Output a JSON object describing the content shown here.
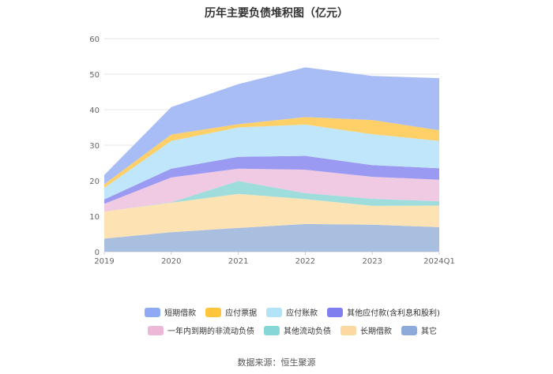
{
  "title": "历年主要负债堆积图（亿元）",
  "source": "数据来源：恒生聚源",
  "chart_data": {
    "type": "area",
    "stacked": true,
    "x": [
      "2019",
      "2020",
      "2021",
      "2022",
      "2023",
      "2024Q1"
    ],
    "ylim": [
      0,
      60
    ],
    "yticks": [
      0,
      10,
      20,
      30,
      40,
      50,
      60
    ],
    "grid": true,
    "legend_position": "bottom",
    "series": [
      {
        "name": "其它",
        "color": "#a9bfe0",
        "values": [
          3.7,
          5.5,
          6.7,
          7.8,
          7.6,
          6.9
        ]
      },
      {
        "name": "长期借款",
        "color": "#fde2b4",
        "values": [
          7.6,
          8.3,
          9.6,
          7.0,
          5.3,
          6.1
        ]
      },
      {
        "name": "其他流动负债",
        "color": "#9fdddd",
        "values": [
          0,
          0.1,
          3.6,
          1.7,
          2.0,
          1.2
        ]
      },
      {
        "name": "一年内到期的非流动负债",
        "color": "#f0c9e2",
        "values": [
          2.2,
          7.0,
          3.5,
          6.6,
          6.2,
          6.1
        ]
      },
      {
        "name": "其他应付款(含利息和股利)",
        "color": "#9b9af2",
        "values": [
          1.2,
          2.5,
          3.3,
          3.9,
          3.3,
          3.2
        ]
      },
      {
        "name": "应付账款",
        "color": "#bfe6fa",
        "values": [
          3.3,
          7.8,
          8.3,
          8.8,
          8.7,
          7.7
        ]
      },
      {
        "name": "应付票据",
        "color": "#ffd068",
        "values": [
          1.0,
          1.8,
          0.9,
          2.1,
          4.0,
          3.0
        ]
      },
      {
        "name": "短期借款",
        "color": "#a8bcf6",
        "values": [
          2.6,
          7.7,
          11.3,
          14.0,
          12.4,
          14.7
        ]
      }
    ]
  },
  "legend": {
    "row1": [
      {
        "label": "短期借款",
        "color": "#8fa9f5"
      },
      {
        "label": "应付票据",
        "color": "#ffc53d"
      },
      {
        "label": "应付账款",
        "color": "#b3e3f7"
      },
      {
        "label": "其他应付款(含利息和股利)",
        "color": "#7f7ff0"
      }
    ],
    "row2": [
      {
        "label": "一年内到期的非流动负债",
        "color": "#edb7d8"
      },
      {
        "label": "其他流动负债",
        "color": "#85d6d6"
      },
      {
        "label": "长期借款",
        "color": "#fcd9a0"
      },
      {
        "label": "其它",
        "color": "#8eaadb"
      }
    ]
  }
}
